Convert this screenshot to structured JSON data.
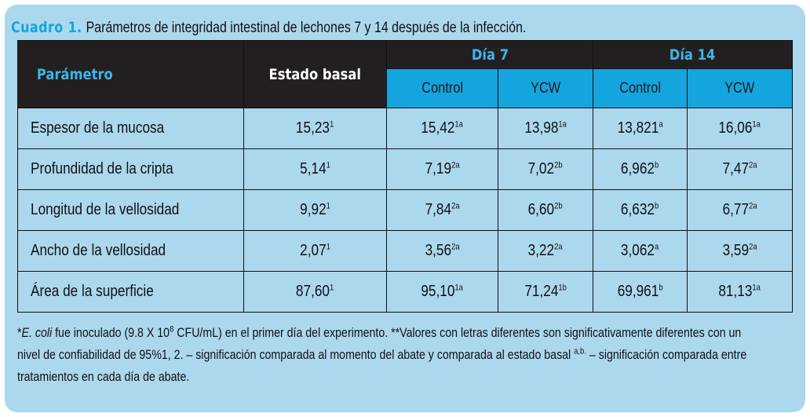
{
  "caption": {
    "label": "Cuadro 1.",
    "text": "Parámetros de integridad intestinal de lechones 7 y 14 después de la infección."
  },
  "headers": {
    "parametro": "Parámetro",
    "estado_basal": "Estado basal",
    "dia7": "Día 7",
    "dia14": "Día 14",
    "sub": [
      "Control",
      "YCW",
      "Control",
      "YCW"
    ]
  },
  "rows": [
    {
      "param": "Espesor de la mucosa",
      "cells": [
        {
          "v": "15,23",
          "s": "1"
        },
        {
          "v": "15,42",
          "s": "1a"
        },
        {
          "v": "13,98",
          "s": "1a"
        },
        {
          "v": "13,821",
          "s": "a"
        },
        {
          "v": "16,06",
          "s": "1a"
        }
      ]
    },
    {
      "param": "Profundidad de la cripta",
      "cells": [
        {
          "v": "5,14",
          "s": "1"
        },
        {
          "v": "7,19",
          "s": "2a"
        },
        {
          "v": "7,02",
          "s": "2b"
        },
        {
          "v": "6,962",
          "s": "b"
        },
        {
          "v": "7,47",
          "s": "2a"
        }
      ]
    },
    {
      "param": "Longitud de la vellosidad",
      "cells": [
        {
          "v": "9,92",
          "s": "1"
        },
        {
          "v": "7,84",
          "s": "2a"
        },
        {
          "v": "6,60",
          "s": "2b"
        },
        {
          "v": "6,632",
          "s": "b"
        },
        {
          "v": "6,77",
          "s": "2a"
        }
      ]
    },
    {
      "param": "Ancho de la vellosidad",
      "cells": [
        {
          "v": "2,07",
          "s": "1"
        },
        {
          "v": "3,56",
          "s": "2a"
        },
        {
          "v": "3,22",
          "s": "2a"
        },
        {
          "v": "3,062",
          "s": "a"
        },
        {
          "v": "3,59",
          "s": "2a"
        }
      ]
    },
    {
      "param": "Área de la superficie",
      "cells": [
        {
          "v": "87,60",
          "s": "1"
        },
        {
          "v": "95,10",
          "s": "1a"
        },
        {
          "v": "71,24",
          "s": "1b"
        },
        {
          "v": "69,961",
          "s": "b"
        },
        {
          "v": "81,13",
          "s": "1a"
        }
      ]
    }
  ],
  "footnote": {
    "star": "*",
    "ecoli": "E. coli",
    "part1": " fue inoculado (9.8 X 10",
    "exp": "8",
    "part2": " CFU/mL) en el primer día del experimento. **Valores con letras diferentes son significativamente diferentes con un",
    "line2a": "nivel de confiabilidad de 95%1, 2. – significación comparada al momento del abate y comparada al estado basal ",
    "sup_ab": "a,b.",
    "line2b": " – significación comparada entre",
    "line3": "tratamientos en cada día de abate."
  }
}
